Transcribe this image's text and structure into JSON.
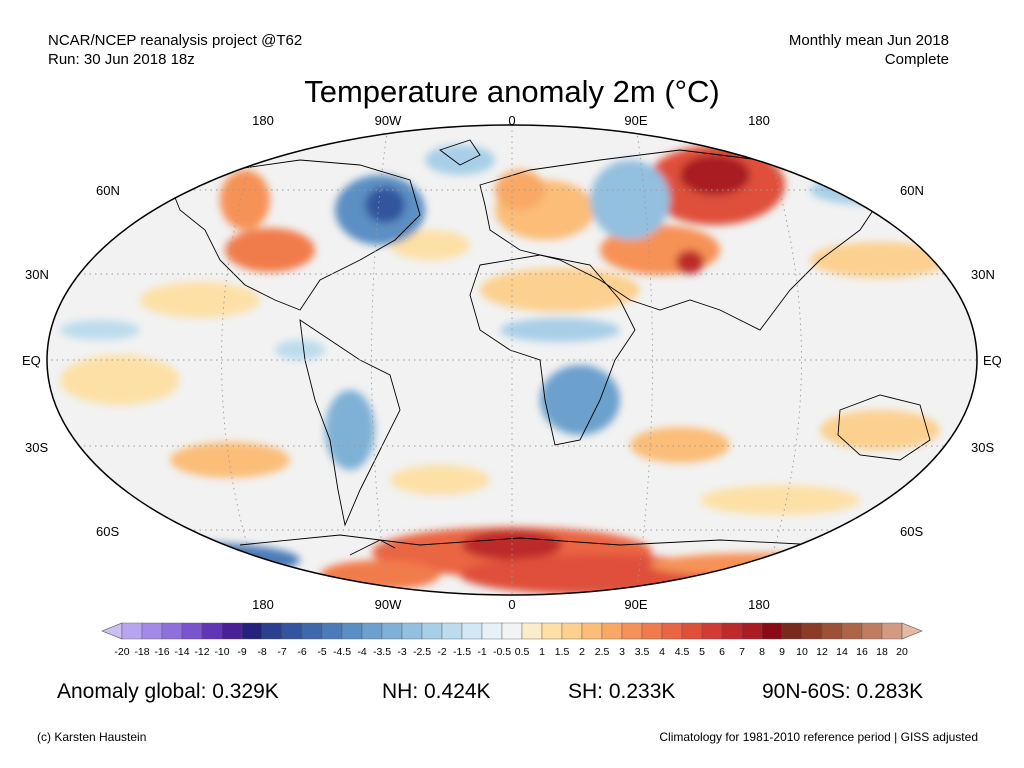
{
  "header": {
    "source": "NCAR/NCEP reanalysis project @T62",
    "run": "Run: 30 Jun 2018 18z",
    "period": "Monthly mean Jun 2018",
    "status": "Complete"
  },
  "title": "Temperature anomaly 2m (°C)",
  "map": {
    "projection": "Robinson",
    "lon_labels_top": [
      "180",
      "90W",
      "0",
      "90E",
      "180"
    ],
    "lon_labels_bottom": [
      "180",
      "90W",
      "0",
      "90E",
      "180"
    ],
    "lat_labels_left": [
      "60N",
      "30N",
      "EQ",
      "30S",
      "60S"
    ],
    "lat_labels_right": [
      "60N",
      "30N",
      "EQ",
      "30S",
      "60S"
    ],
    "grid": "dotted",
    "ocean_neutral_color": "#f2f2f2"
  },
  "colorbar": {
    "labels": [
      "-20",
      "-18",
      "-16",
      "-14",
      "-12",
      "-10",
      "-9",
      "-8",
      "-7",
      "-6",
      "-5",
      "-4.5",
      "-4",
      "-3.5",
      "-3",
      "-2.5",
      "-2",
      "-1.5",
      "-1",
      "-0.5",
      "0.5",
      "1",
      "1.5",
      "2",
      "2.5",
      "3",
      "3.5",
      "4",
      "4.5",
      "5",
      "6",
      "7",
      "8",
      "9",
      "10",
      "12",
      "14",
      "16",
      "18",
      "20"
    ],
    "colors": [
      "#c9bff2",
      "#b7a6ee",
      "#a38ae6",
      "#8e6fdc",
      "#7a54cf",
      "#6136b6",
      "#4a1f98",
      "#23237d",
      "#2a3f8f",
      "#33549e",
      "#3d68ac",
      "#4b7cb8",
      "#5b8fc3",
      "#6ca0cd",
      "#7fb1d6",
      "#93c0df",
      "#a8cfe7",
      "#bcdcee",
      "#d2e8f4",
      "#e6f1f8",
      "#f3f3f3",
      "#fbedc9",
      "#fde0a6",
      "#fcd08f",
      "#fbbd78",
      "#f9a865",
      "#f69257",
      "#f17b4c",
      "#ea6543",
      "#df503b",
      "#d03c34",
      "#bd2a2c",
      "#a81c24",
      "#8a0b16",
      "#7a2a1c",
      "#8b3c27",
      "#9c5037",
      "#ad6549",
      "#bf7c60",
      "#d19a81",
      "#e5b9a4"
    ]
  },
  "stats": {
    "global": "Anomaly global: 0.329K",
    "nh": "NH: 0.424K",
    "sh": "SH: 0.233K",
    "arctic": "90N-60S: 0.283K"
  },
  "footer": {
    "credit": "(c) Karsten Haustein",
    "note": "Climatology for 1981-2010 reference period | GISS adjusted"
  }
}
